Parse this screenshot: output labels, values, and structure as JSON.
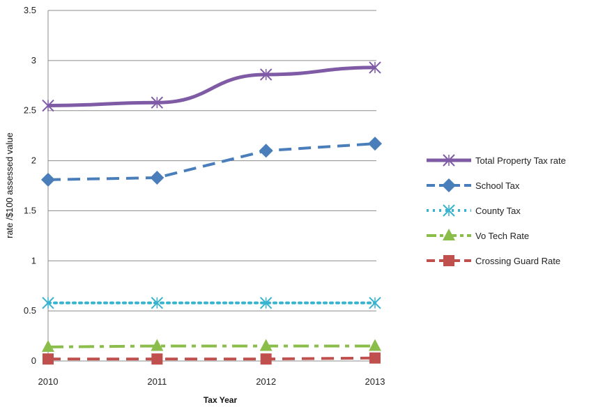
{
  "chart_data": {
    "type": "line",
    "title": "",
    "xlabel": "Tax Year",
    "ylabel": "rate /$100 assessed value",
    "categories": [
      "2010",
      "2011",
      "2012",
      "2013"
    ],
    "ylim": [
      0,
      3.5
    ],
    "yticks": [
      "0",
      "0.5",
      "1",
      "1.5",
      "2",
      "2.5",
      "3",
      "3.5"
    ],
    "grid": "horizontal",
    "legend": "right",
    "series": [
      {
        "name": "Total Property Tax rate",
        "values": [
          2.55,
          2.58,
          2.86,
          2.93
        ],
        "color": "#7f5ba6",
        "dash": "solid",
        "marker": "x-star"
      },
      {
        "name": "School Tax",
        "values": [
          1.81,
          1.83,
          2.1,
          2.17
        ],
        "color": "#4a7ebb",
        "dash": "dashed",
        "marker": "diamond"
      },
      {
        "name": "County Tax",
        "values": [
          0.58,
          0.58,
          0.58,
          0.58
        ],
        "color": "#36b3cf",
        "dash": "dotted",
        "marker": "asterisk"
      },
      {
        "name": "Vo Tech Rate",
        "values": [
          0.14,
          0.15,
          0.15,
          0.15
        ],
        "color": "#8bbd4a",
        "dash": "dash-dot",
        "marker": "triangle"
      },
      {
        "name": "Crossing Guard Rate",
        "values": [
          0.02,
          0.02,
          0.02,
          0.03
        ],
        "color": "#c0504d",
        "dash": "dashed",
        "marker": "square"
      }
    ]
  }
}
